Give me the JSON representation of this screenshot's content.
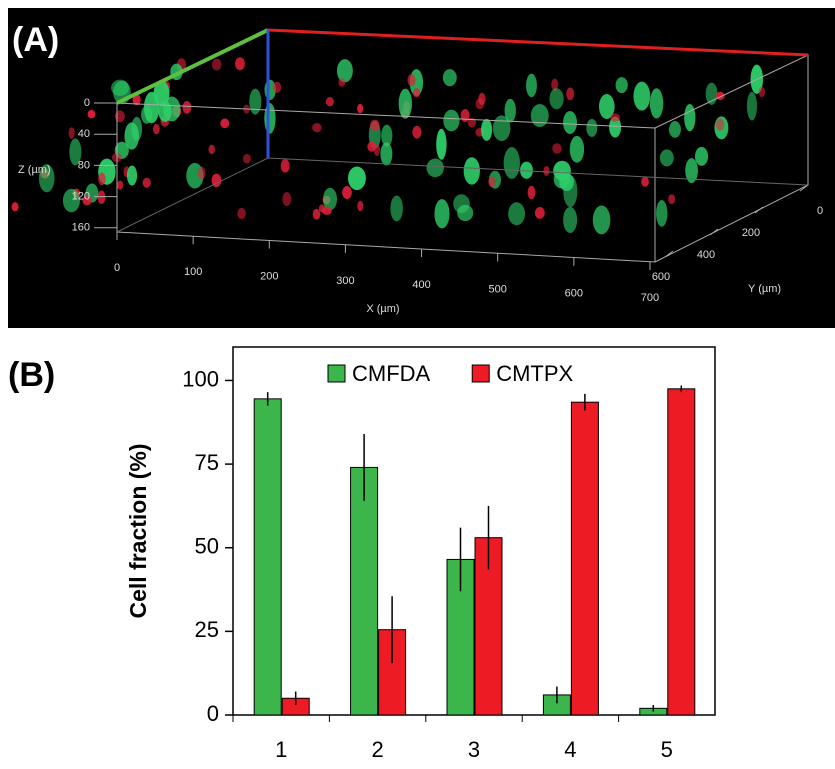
{
  "panel_a": {
    "label": "(A)",
    "z_axis": {
      "label": "Z (µm)",
      "ticks": [
        0,
        40,
        80,
        120,
        160
      ]
    },
    "x_axis": {
      "label": "X (µm)",
      "ticks": [
        0,
        100,
        200,
        300,
        400,
        500,
        600,
        700
      ]
    },
    "y_axis": {
      "label": "Y (µm)",
      "ticks": [
        0,
        200,
        400,
        600
      ]
    }
  },
  "panel_b_label": "(B)",
  "chart_data": {
    "type": "bar",
    "y_label": "Cell fraction (%)",
    "categories": [
      "1",
      "2",
      "3",
      "4",
      "5"
    ],
    "series": [
      {
        "name": "CMFDA",
        "color": "#3cb54a",
        "values": [
          94.5,
          74,
          46.5,
          6,
          2
        ],
        "errors": [
          2,
          10,
          9.5,
          2.5,
          1
        ]
      },
      {
        "name": "CMTPX",
        "color": "#ed1c24",
        "values": [
          5,
          25.5,
          53,
          93.5,
          97.5
        ],
        "errors": [
          2,
          10,
          9.5,
          2.5,
          1
        ]
      }
    ],
    "ylim": [
      0,
      110
    ],
    "yticks": [
      0,
      25,
      50,
      75,
      100
    ],
    "legend": "top"
  }
}
